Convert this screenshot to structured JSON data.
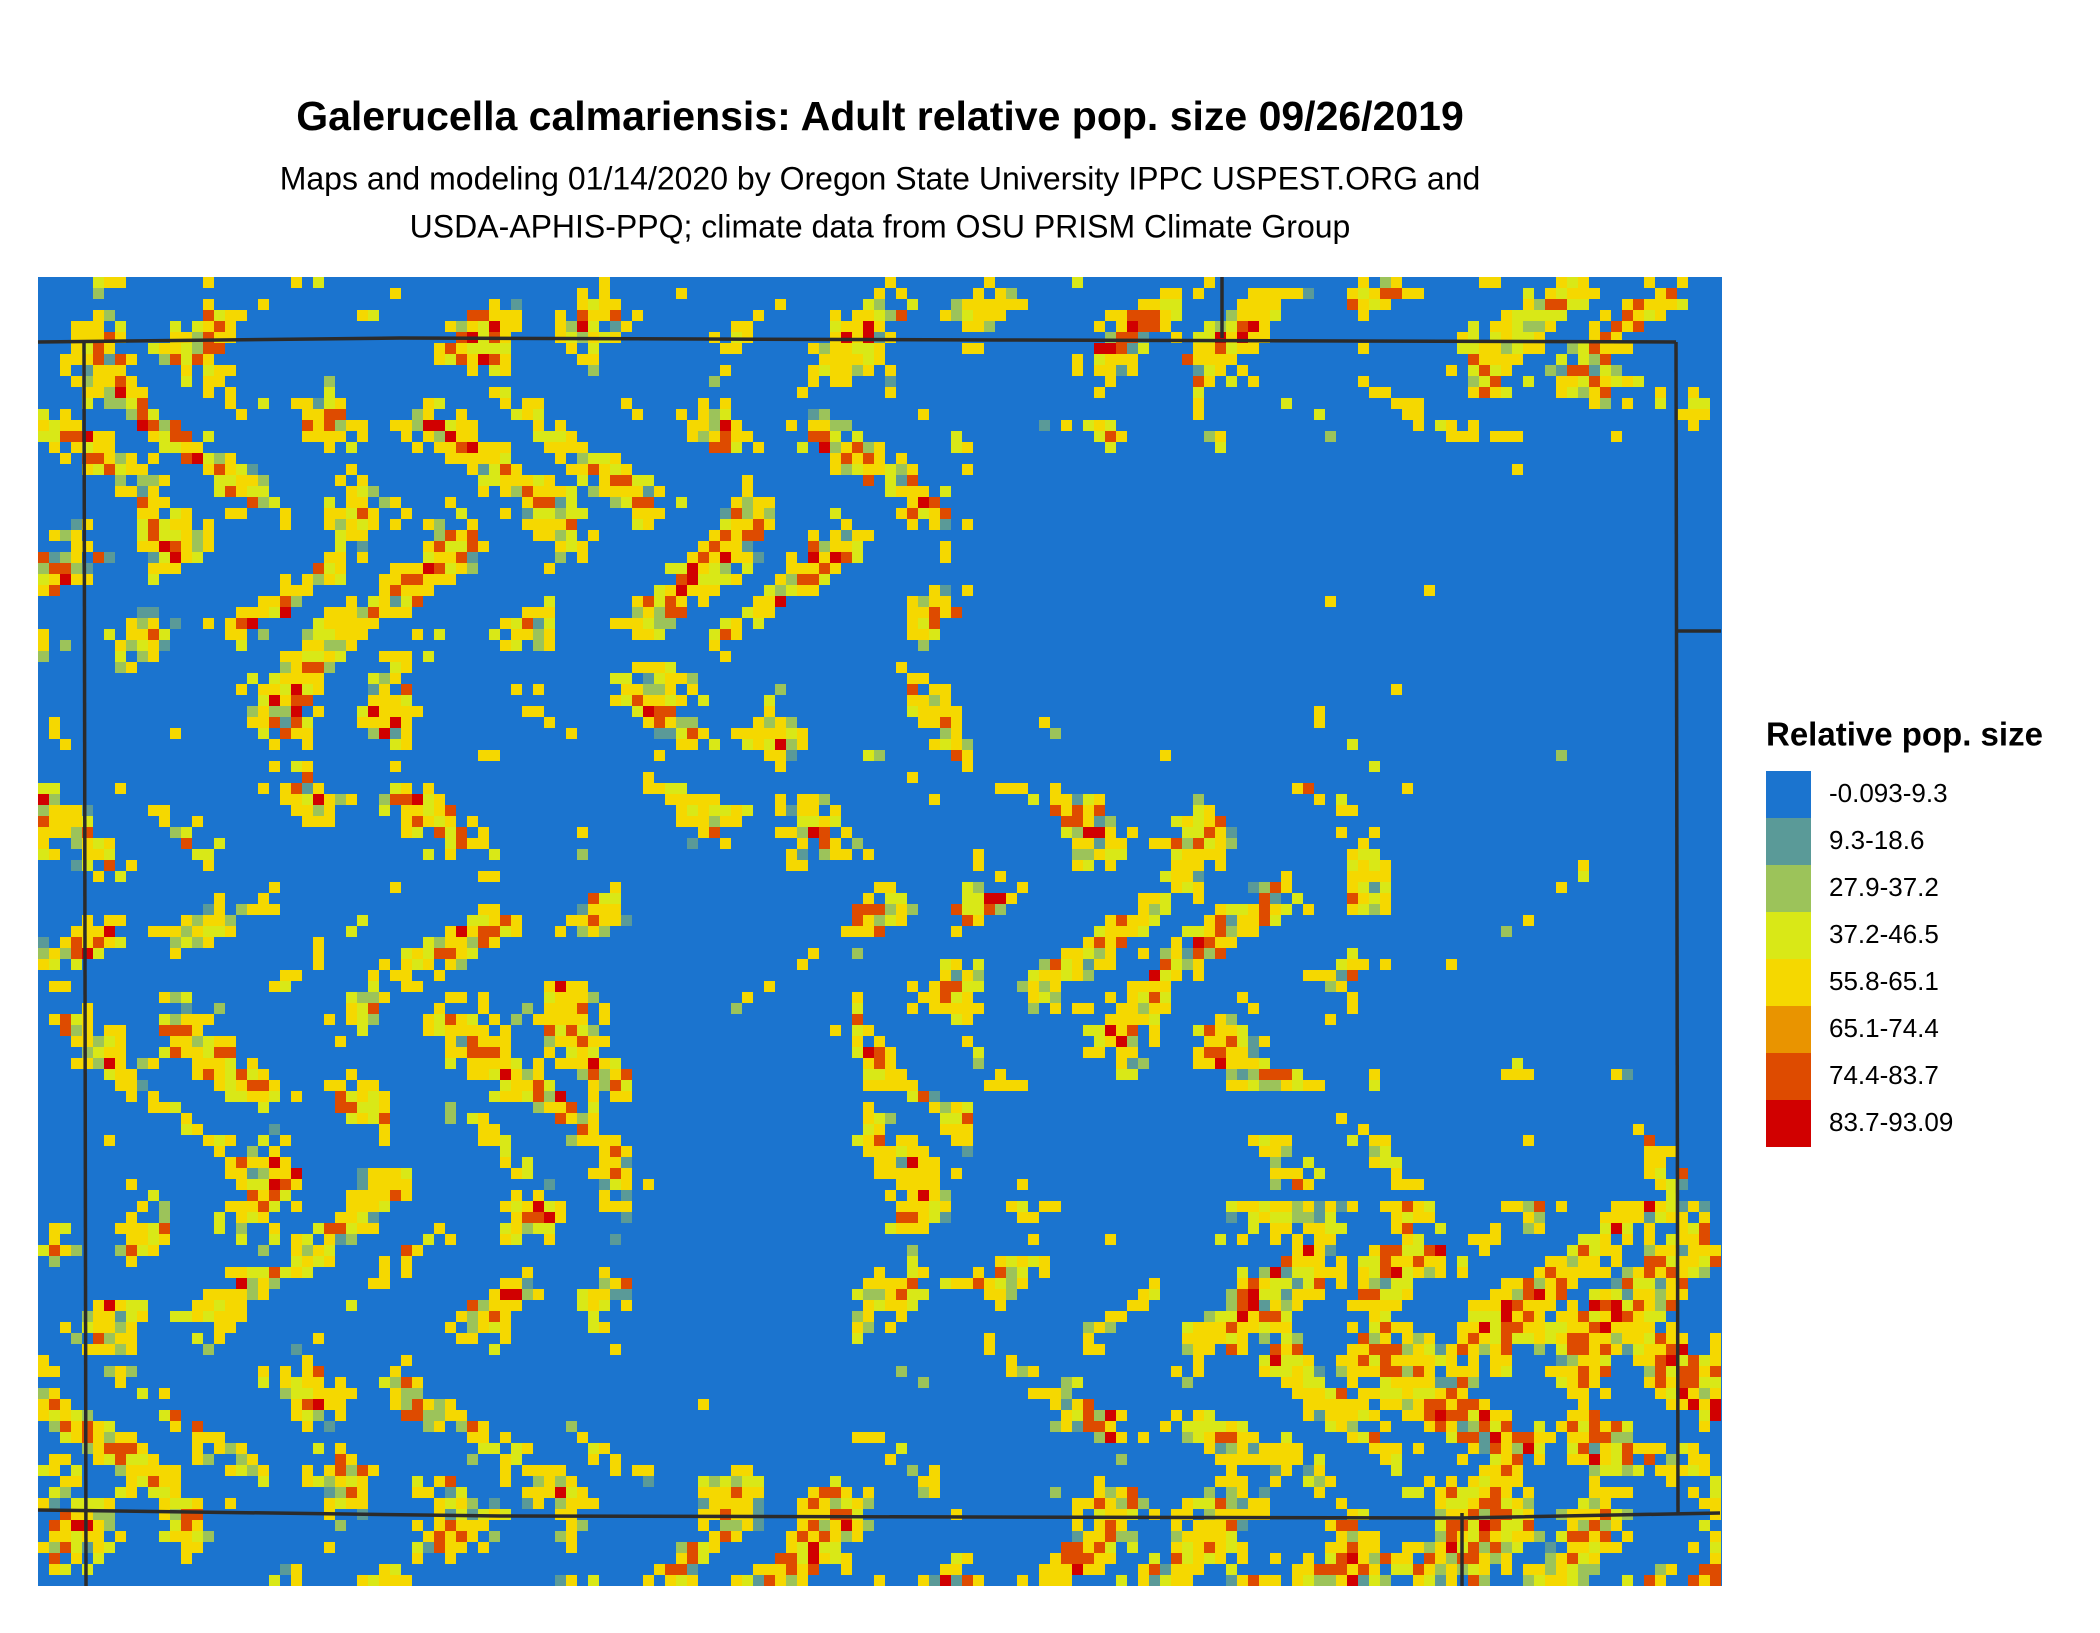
{
  "title": "Galerucella calmariensis: Adult relative pop. size 09/26/2019",
  "subtitle": [
    "Maps and modeling 01/14/2020 by Oregon State University IPPC USPEST.ORG and",
    "USDA-APHIS-PPQ; climate data from OSU PRISM Climate Group"
  ],
  "legend": {
    "title": "Relative pop. size",
    "items": [
      {
        "label": "-0.093-9.3",
        "color": "#1b74cf"
      },
      {
        "label": "9.3-18.6",
        "color": "#5a9a98"
      },
      {
        "label": "27.9-37.2",
        "color": "#9cc35a"
      },
      {
        "label": "37.2-46.5",
        "color": "#d9e817"
      },
      {
        "label": "55.8-65.1",
        "color": "#f5d800"
      },
      {
        "label": "65.1-74.4",
        "color": "#e99400"
      },
      {
        "label": "74.4-83.7",
        "color": "#de4b00"
      },
      {
        "label": "83.7-93.09",
        "color": "#d10000"
      }
    ]
  }
}
